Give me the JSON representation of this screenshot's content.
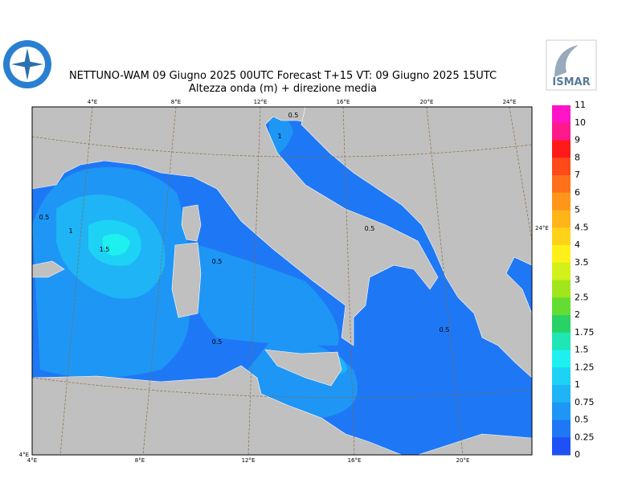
{
  "header": {
    "title": "NETTUNO-WAM  09   Giugno  2025 00UTC Forecast T+15 VT: 09   Giugno  2025 15UTC",
    "subtitle": "Altezza onda (m) + direzione media",
    "logo_text": "ISMAR"
  },
  "axes": {
    "top": [
      "4°E",
      "8°E",
      "12°E",
      "16°E",
      "20°E",
      "24°E"
    ],
    "bottom": [
      "4°E",
      "8°E",
      "12°E",
      "16°E",
      "20°E"
    ],
    "left": [
      "4°E"
    ],
    "right": [
      "24°E"
    ]
  },
  "contour_labels": [
    "0.5",
    "1",
    "1.5",
    "0.5",
    "0.5",
    "1",
    "0.5",
    "0.5",
    "0.5"
  ],
  "legend": {
    "labels": [
      "11",
      "10",
      "9",
      "8",
      "7",
      "6",
      "5",
      "4.5",
      "4",
      "3.5",
      "3",
      "2.5",
      "2",
      "1.75",
      "1.5",
      "1.25",
      "1",
      "0.75",
      "0.5",
      "0.25",
      "0"
    ],
    "colors": [
      "#ff14c8",
      "#ff1a8c",
      "#ff1a1a",
      "#ff4a1a",
      "#ff701a",
      "#ff961a",
      "#ffb41a",
      "#ffd21a",
      "#fff01a",
      "#d2f01a",
      "#a0e61a",
      "#64dc32",
      "#28d264",
      "#1ee6b4",
      "#1ef0f0",
      "#1ed2f5",
      "#1eb4f5",
      "#1e96f5",
      "#1e78f5",
      "#1e50f5"
    ]
  }
}
